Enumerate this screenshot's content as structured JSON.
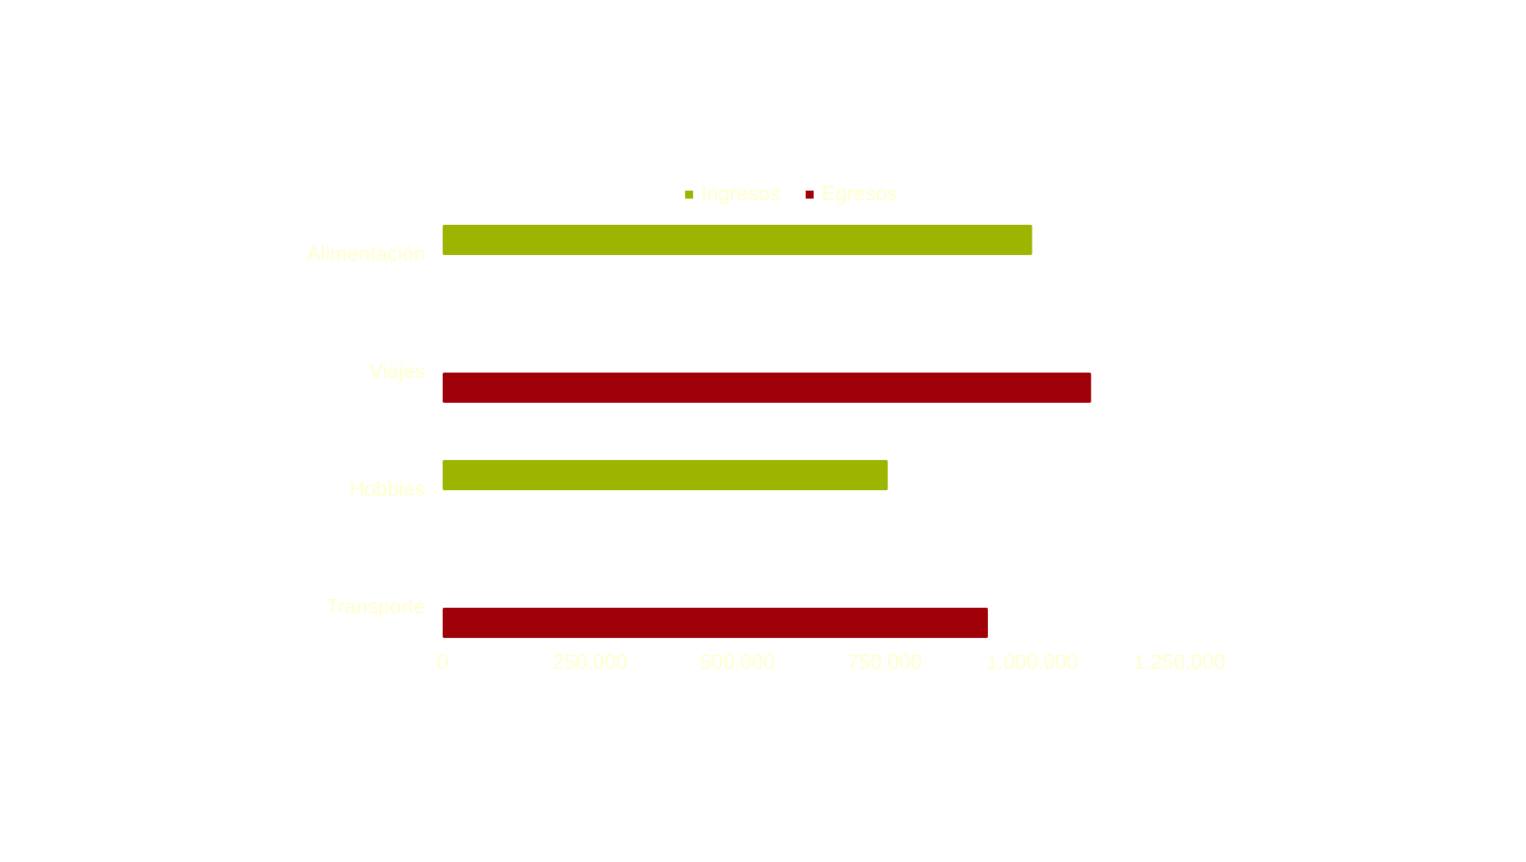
{
  "chart_data": {
    "type": "hbar",
    "categories": [
      "Alimentación",
      "Viajes",
      "Hobbies",
      "Transporte"
    ],
    "series": [
      {
        "name": "Ingresos",
        "color": "#9bb500",
        "values": [
          1000000,
          null,
          755000,
          null
        ]
      },
      {
        "name": "Egresos",
        "color": "#a00008",
        "values": [
          null,
          1100000,
          null,
          925000
        ]
      }
    ],
    "xlim": [
      0,
      1250000
    ],
    "xticks": [
      0,
      {
        "value": 250000,
        "label": "250.000"
      },
      {
        "value": 500000,
        "label": "500.000"
      },
      {
        "value": 750000,
        "label": "750.000"
      },
      {
        "value": 1000000,
        "label": "1.000.000"
      },
      {
        "value": 1250000,
        "label": "1.250.000"
      }
    ],
    "legend": "top"
  }
}
